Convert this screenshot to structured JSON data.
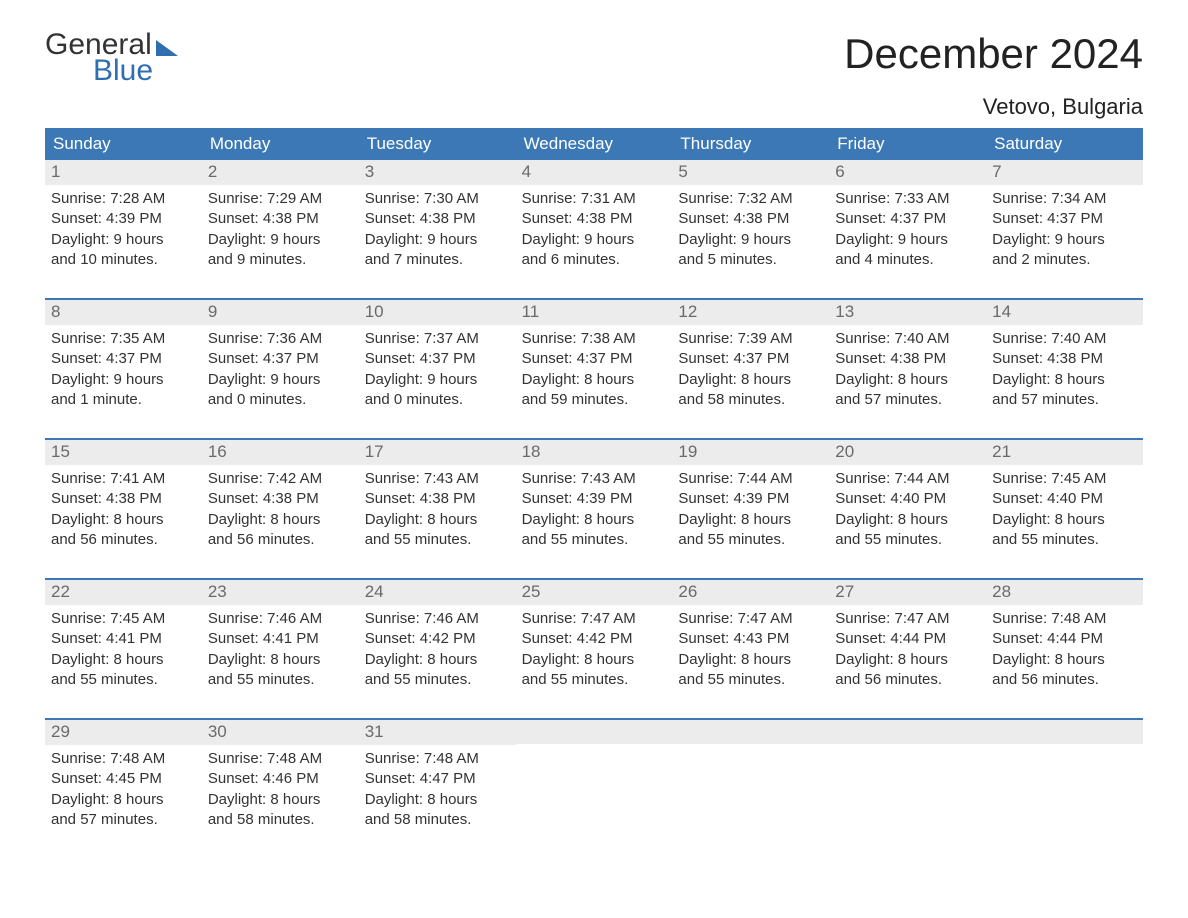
{
  "logo": {
    "word1": "General",
    "word2": "Blue"
  },
  "title": "December 2024",
  "location": "Vetovo, Bulgaria",
  "colors": {
    "header_bg": "#3b78b5",
    "header_text": "#ffffff",
    "daynum_bg": "#ececec",
    "daynum_text": "#6a6a6a",
    "body_text": "#333333",
    "rule": "#3b78b5"
  },
  "weekdays": [
    "Sunday",
    "Monday",
    "Tuesday",
    "Wednesday",
    "Thursday",
    "Friday",
    "Saturday"
  ],
  "weeks": [
    [
      {
        "n": "1",
        "sunrise": "Sunrise: 7:28 AM",
        "sunset": "Sunset: 4:39 PM",
        "d1": "Daylight: 9 hours",
        "d2": "and 10 minutes."
      },
      {
        "n": "2",
        "sunrise": "Sunrise: 7:29 AM",
        "sunset": "Sunset: 4:38 PM",
        "d1": "Daylight: 9 hours",
        "d2": "and 9 minutes."
      },
      {
        "n": "3",
        "sunrise": "Sunrise: 7:30 AM",
        "sunset": "Sunset: 4:38 PM",
        "d1": "Daylight: 9 hours",
        "d2": "and 7 minutes."
      },
      {
        "n": "4",
        "sunrise": "Sunrise: 7:31 AM",
        "sunset": "Sunset: 4:38 PM",
        "d1": "Daylight: 9 hours",
        "d2": "and 6 minutes."
      },
      {
        "n": "5",
        "sunrise": "Sunrise: 7:32 AM",
        "sunset": "Sunset: 4:38 PM",
        "d1": "Daylight: 9 hours",
        "d2": "and 5 minutes."
      },
      {
        "n": "6",
        "sunrise": "Sunrise: 7:33 AM",
        "sunset": "Sunset: 4:37 PM",
        "d1": "Daylight: 9 hours",
        "d2": "and 4 minutes."
      },
      {
        "n": "7",
        "sunrise": "Sunrise: 7:34 AM",
        "sunset": "Sunset: 4:37 PM",
        "d1": "Daylight: 9 hours",
        "d2": "and 2 minutes."
      }
    ],
    [
      {
        "n": "8",
        "sunrise": "Sunrise: 7:35 AM",
        "sunset": "Sunset: 4:37 PM",
        "d1": "Daylight: 9 hours",
        "d2": "and 1 minute."
      },
      {
        "n": "9",
        "sunrise": "Sunrise: 7:36 AM",
        "sunset": "Sunset: 4:37 PM",
        "d1": "Daylight: 9 hours",
        "d2": "and 0 minutes."
      },
      {
        "n": "10",
        "sunrise": "Sunrise: 7:37 AM",
        "sunset": "Sunset: 4:37 PM",
        "d1": "Daylight: 9 hours",
        "d2": "and 0 minutes."
      },
      {
        "n": "11",
        "sunrise": "Sunrise: 7:38 AM",
        "sunset": "Sunset: 4:37 PM",
        "d1": "Daylight: 8 hours",
        "d2": "and 59 minutes."
      },
      {
        "n": "12",
        "sunrise": "Sunrise: 7:39 AM",
        "sunset": "Sunset: 4:37 PM",
        "d1": "Daylight: 8 hours",
        "d2": "and 58 minutes."
      },
      {
        "n": "13",
        "sunrise": "Sunrise: 7:40 AM",
        "sunset": "Sunset: 4:38 PM",
        "d1": "Daylight: 8 hours",
        "d2": "and 57 minutes."
      },
      {
        "n": "14",
        "sunrise": "Sunrise: 7:40 AM",
        "sunset": "Sunset: 4:38 PM",
        "d1": "Daylight: 8 hours",
        "d2": "and 57 minutes."
      }
    ],
    [
      {
        "n": "15",
        "sunrise": "Sunrise: 7:41 AM",
        "sunset": "Sunset: 4:38 PM",
        "d1": "Daylight: 8 hours",
        "d2": "and 56 minutes."
      },
      {
        "n": "16",
        "sunrise": "Sunrise: 7:42 AM",
        "sunset": "Sunset: 4:38 PM",
        "d1": "Daylight: 8 hours",
        "d2": "and 56 minutes."
      },
      {
        "n": "17",
        "sunrise": "Sunrise: 7:43 AM",
        "sunset": "Sunset: 4:38 PM",
        "d1": "Daylight: 8 hours",
        "d2": "and 55 minutes."
      },
      {
        "n": "18",
        "sunrise": "Sunrise: 7:43 AM",
        "sunset": "Sunset: 4:39 PM",
        "d1": "Daylight: 8 hours",
        "d2": "and 55 minutes."
      },
      {
        "n": "19",
        "sunrise": "Sunrise: 7:44 AM",
        "sunset": "Sunset: 4:39 PM",
        "d1": "Daylight: 8 hours",
        "d2": "and 55 minutes."
      },
      {
        "n": "20",
        "sunrise": "Sunrise: 7:44 AM",
        "sunset": "Sunset: 4:40 PM",
        "d1": "Daylight: 8 hours",
        "d2": "and 55 minutes."
      },
      {
        "n": "21",
        "sunrise": "Sunrise: 7:45 AM",
        "sunset": "Sunset: 4:40 PM",
        "d1": "Daylight: 8 hours",
        "d2": "and 55 minutes."
      }
    ],
    [
      {
        "n": "22",
        "sunrise": "Sunrise: 7:45 AM",
        "sunset": "Sunset: 4:41 PM",
        "d1": "Daylight: 8 hours",
        "d2": "and 55 minutes."
      },
      {
        "n": "23",
        "sunrise": "Sunrise: 7:46 AM",
        "sunset": "Sunset: 4:41 PM",
        "d1": "Daylight: 8 hours",
        "d2": "and 55 minutes."
      },
      {
        "n": "24",
        "sunrise": "Sunrise: 7:46 AM",
        "sunset": "Sunset: 4:42 PM",
        "d1": "Daylight: 8 hours",
        "d2": "and 55 minutes."
      },
      {
        "n": "25",
        "sunrise": "Sunrise: 7:47 AM",
        "sunset": "Sunset: 4:42 PM",
        "d1": "Daylight: 8 hours",
        "d2": "and 55 minutes."
      },
      {
        "n": "26",
        "sunrise": "Sunrise: 7:47 AM",
        "sunset": "Sunset: 4:43 PM",
        "d1": "Daylight: 8 hours",
        "d2": "and 55 minutes."
      },
      {
        "n": "27",
        "sunrise": "Sunrise: 7:47 AM",
        "sunset": "Sunset: 4:44 PM",
        "d1": "Daylight: 8 hours",
        "d2": "and 56 minutes."
      },
      {
        "n": "28",
        "sunrise": "Sunrise: 7:48 AM",
        "sunset": "Sunset: 4:44 PM",
        "d1": "Daylight: 8 hours",
        "d2": "and 56 minutes."
      }
    ],
    [
      {
        "n": "29",
        "sunrise": "Sunrise: 7:48 AM",
        "sunset": "Sunset: 4:45 PM",
        "d1": "Daylight: 8 hours",
        "d2": "and 57 minutes."
      },
      {
        "n": "30",
        "sunrise": "Sunrise: 7:48 AM",
        "sunset": "Sunset: 4:46 PM",
        "d1": "Daylight: 8 hours",
        "d2": "and 58 minutes."
      },
      {
        "n": "31",
        "sunrise": "Sunrise: 7:48 AM",
        "sunset": "Sunset: 4:47 PM",
        "d1": "Daylight: 8 hours",
        "d2": "and 58 minutes."
      },
      null,
      null,
      null,
      null
    ]
  ]
}
